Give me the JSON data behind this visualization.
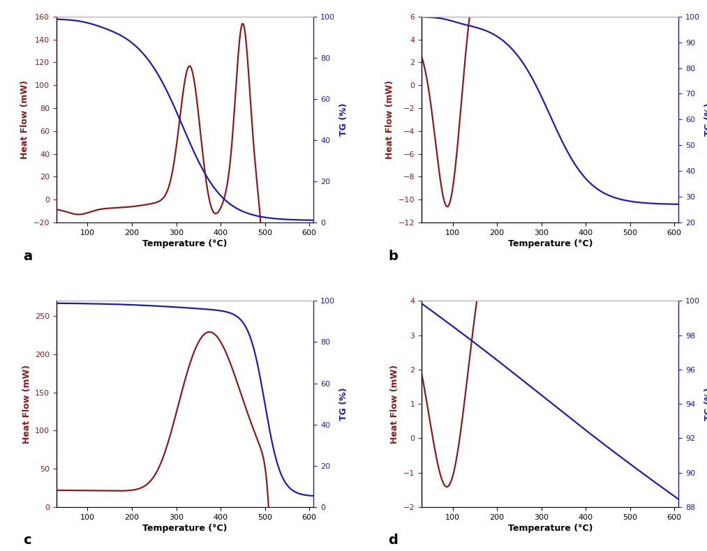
{
  "panel_a": {
    "label": "a",
    "dsc_color": "#8B1A1A",
    "tg_color": "#1C1CB0",
    "xlabel": "Temperature (°C)",
    "ylabel_left": "Heat Flow (mW)",
    "ylabel_right": "TG (%)",
    "xlim": [
      30,
      610
    ],
    "ylim_left": [
      -20,
      160
    ],
    "ylim_right": [
      0,
      100
    ],
    "xticks": [
      100,
      200,
      300,
      400,
      500,
      600
    ],
    "yticks_left": [
      -20,
      0,
      20,
      40,
      60,
      80,
      100,
      120,
      140,
      160
    ],
    "yticks_right": [
      0,
      20,
      40,
      60,
      80,
      100
    ]
  },
  "panel_b": {
    "label": "b",
    "dsc_color": "#8B1A1A",
    "tg_color": "#1C1CB0",
    "xlabel": "Temperature (°C)",
    "ylabel_left": "Heat Flow (mW)",
    "ylabel_right": "TG (%)",
    "xlim": [
      30,
      610
    ],
    "ylim_left": [
      -12,
      6
    ],
    "ylim_right": [
      20,
      100
    ],
    "xticks": [
      100,
      200,
      300,
      400,
      500,
      600
    ],
    "yticks_left": [
      -12,
      -10,
      -8,
      -6,
      -4,
      -2,
      0,
      2,
      4,
      6
    ],
    "yticks_right": [
      20,
      30,
      40,
      50,
      60,
      70,
      80,
      90,
      100
    ]
  },
  "panel_c": {
    "label": "c",
    "dsc_color": "#8B1A1A",
    "tg_color": "#1C1CB0",
    "xlabel": "Temperature (°C)",
    "ylabel_left": "Heat Flow (mW)",
    "ylabel_right": "TG (%)",
    "xlim": [
      30,
      610
    ],
    "ylim_left": [
      0,
      270
    ],
    "ylim_right": [
      0,
      100
    ],
    "xticks": [
      100,
      200,
      300,
      400,
      500,
      600
    ],
    "yticks_left": [
      0,
      50,
      100,
      150,
      200,
      250
    ],
    "yticks_right": [
      0,
      20,
      40,
      60,
      80,
      100
    ]
  },
  "panel_d": {
    "label": "d",
    "dsc_color": "#8B1A1A",
    "tg_color": "#1C1CB0",
    "xlabel": "Temperature (°C)",
    "ylabel_left": "Heat Flow (mW)",
    "ylabel_right": "TG (%)",
    "xlim": [
      30,
      610
    ],
    "ylim_left": [
      -2,
      4
    ],
    "ylim_right": [
      88,
      100
    ],
    "xticks": [
      100,
      200,
      300,
      400,
      500,
      600
    ],
    "yticks_left": [
      -2,
      -1,
      0,
      1,
      2,
      3,
      4
    ],
    "yticks_right": [
      88,
      90,
      92,
      94,
      96,
      98,
      100
    ]
  }
}
